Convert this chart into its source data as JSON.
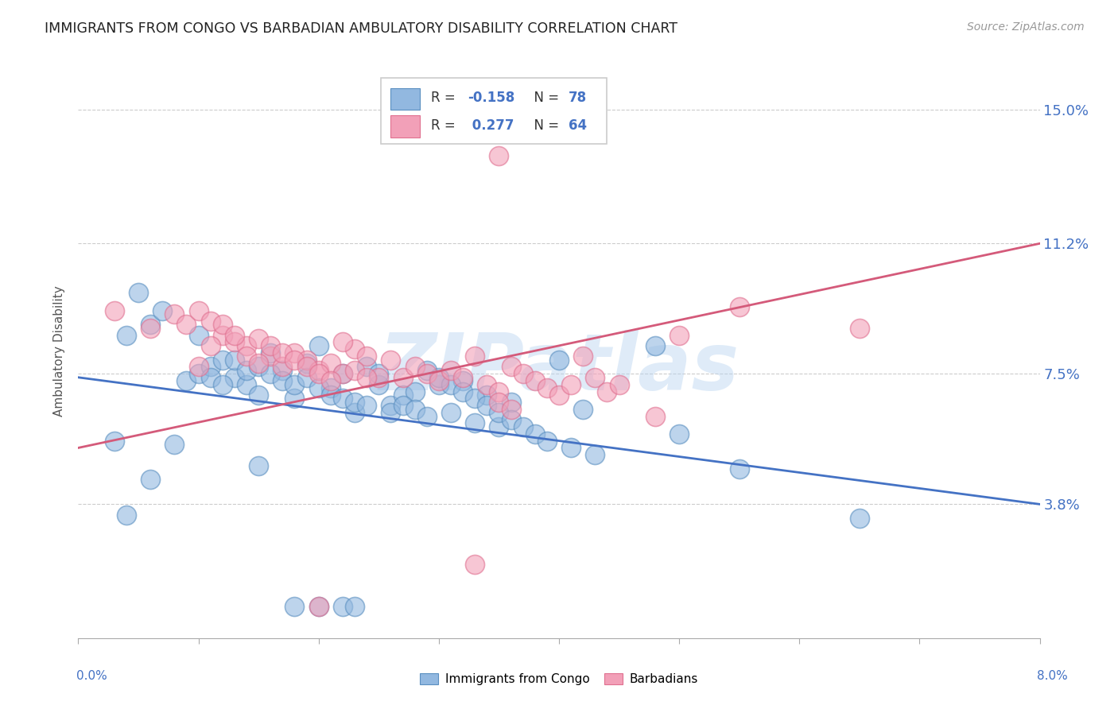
{
  "title": "IMMIGRANTS FROM CONGO VS BARBADIAN AMBULATORY DISABILITY CORRELATION CHART",
  "source": "Source: ZipAtlas.com",
  "ylabel": "Ambulatory Disability",
  "yticks": [
    "3.8%",
    "7.5%",
    "11.2%",
    "15.0%"
  ],
  "ytick_values": [
    0.038,
    0.075,
    0.112,
    0.15
  ],
  "xlim": [
    0.0,
    0.08
  ],
  "ylim": [
    0.0,
    0.163
  ],
  "blue_color": "#92b8e0",
  "pink_color": "#f2a0b8",
  "blue_edge_color": "#5a8fc0",
  "pink_edge_color": "#e07090",
  "blue_line_color": "#4472c4",
  "pink_line_color": "#d45a7a",
  "watermark": "ZIPatlas",
  "blue_line": [
    [
      0.0,
      0.074
    ],
    [
      0.08,
      0.038
    ]
  ],
  "pink_line": [
    [
      0.0,
      0.054
    ],
    [
      0.08,
      0.112
    ]
  ],
  "blue_points": [
    [
      0.005,
      0.098
    ],
    [
      0.008,
      0.055
    ],
    [
      0.009,
      0.073
    ],
    [
      0.01,
      0.075
    ],
    [
      0.011,
      0.077
    ],
    [
      0.012,
      0.079
    ],
    [
      0.013,
      0.074
    ],
    [
      0.014,
      0.072
    ],
    [
      0.015,
      0.069
    ],
    [
      0.016,
      0.081
    ],
    [
      0.017,
      0.076
    ],
    [
      0.018,
      0.068
    ],
    [
      0.019,
      0.078
    ],
    [
      0.02,
      0.083
    ],
    [
      0.021,
      0.071
    ],
    [
      0.022,
      0.075
    ],
    [
      0.023,
      0.064
    ],
    [
      0.024,
      0.077
    ],
    [
      0.025,
      0.072
    ],
    [
      0.026,
      0.066
    ],
    [
      0.027,
      0.069
    ],
    [
      0.028,
      0.07
    ],
    [
      0.029,
      0.076
    ],
    [
      0.03,
      0.072
    ],
    [
      0.031,
      0.064
    ],
    [
      0.032,
      0.073
    ],
    [
      0.033,
      0.061
    ],
    [
      0.034,
      0.069
    ],
    [
      0.035,
      0.06
    ],
    [
      0.036,
      0.067
    ],
    [
      0.04,
      0.079
    ],
    [
      0.042,
      0.065
    ],
    [
      0.048,
      0.083
    ],
    [
      0.05,
      0.058
    ],
    [
      0.055,
      0.048
    ],
    [
      0.003,
      0.056
    ],
    [
      0.004,
      0.086
    ],
    [
      0.006,
      0.089
    ],
    [
      0.007,
      0.093
    ],
    [
      0.01,
      0.086
    ],
    [
      0.011,
      0.074
    ],
    [
      0.012,
      0.072
    ],
    [
      0.013,
      0.079
    ],
    [
      0.014,
      0.076
    ],
    [
      0.015,
      0.077
    ],
    [
      0.016,
      0.075
    ],
    [
      0.017,
      0.073
    ],
    [
      0.018,
      0.072
    ],
    [
      0.019,
      0.074
    ],
    [
      0.02,
      0.071
    ],
    [
      0.021,
      0.069
    ],
    [
      0.022,
      0.068
    ],
    [
      0.023,
      0.067
    ],
    [
      0.024,
      0.066
    ],
    [
      0.025,
      0.075
    ],
    [
      0.026,
      0.064
    ],
    [
      0.027,
      0.066
    ],
    [
      0.028,
      0.065
    ],
    [
      0.029,
      0.063
    ],
    [
      0.03,
      0.074
    ],
    [
      0.031,
      0.072
    ],
    [
      0.032,
      0.07
    ],
    [
      0.033,
      0.068
    ],
    [
      0.034,
      0.066
    ],
    [
      0.035,
      0.064
    ],
    [
      0.036,
      0.062
    ],
    [
      0.037,
      0.06
    ],
    [
      0.038,
      0.058
    ],
    [
      0.039,
      0.056
    ],
    [
      0.041,
      0.054
    ],
    [
      0.043,
      0.052
    ],
    [
      0.02,
      0.009
    ],
    [
      0.022,
      0.009
    ],
    [
      0.065,
      0.034
    ],
    [
      0.004,
      0.035
    ],
    [
      0.006,
      0.045
    ],
    [
      0.015,
      0.049
    ],
    [
      0.018,
      0.009
    ],
    [
      0.023,
      0.009
    ]
  ],
  "pink_points": [
    [
      0.003,
      0.093
    ],
    [
      0.006,
      0.088
    ],
    [
      0.008,
      0.092
    ],
    [
      0.009,
      0.089
    ],
    [
      0.01,
      0.093
    ],
    [
      0.011,
      0.09
    ],
    [
      0.012,
      0.086
    ],
    [
      0.013,
      0.084
    ],
    [
      0.014,
      0.083
    ],
    [
      0.015,
      0.085
    ],
    [
      0.016,
      0.08
    ],
    [
      0.017,
      0.077
    ],
    [
      0.018,
      0.081
    ],
    [
      0.019,
      0.079
    ],
    [
      0.02,
      0.076
    ],
    [
      0.021,
      0.078
    ],
    [
      0.022,
      0.075
    ],
    [
      0.023,
      0.082
    ],
    [
      0.024,
      0.08
    ],
    [
      0.025,
      0.074
    ],
    [
      0.026,
      0.079
    ],
    [
      0.027,
      0.074
    ],
    [
      0.028,
      0.077
    ],
    [
      0.029,
      0.075
    ],
    [
      0.03,
      0.073
    ],
    [
      0.031,
      0.076
    ],
    [
      0.032,
      0.074
    ],
    [
      0.033,
      0.08
    ],
    [
      0.034,
      0.072
    ],
    [
      0.035,
      0.07
    ],
    [
      0.036,
      0.077
    ],
    [
      0.037,
      0.075
    ],
    [
      0.038,
      0.073
    ],
    [
      0.039,
      0.071
    ],
    [
      0.04,
      0.069
    ],
    [
      0.041,
      0.072
    ],
    [
      0.042,
      0.08
    ],
    [
      0.043,
      0.074
    ],
    [
      0.044,
      0.07
    ],
    [
      0.045,
      0.072
    ],
    [
      0.05,
      0.086
    ],
    [
      0.055,
      0.094
    ],
    [
      0.065,
      0.088
    ],
    [
      0.01,
      0.077
    ],
    [
      0.011,
      0.083
    ],
    [
      0.012,
      0.089
    ],
    [
      0.013,
      0.086
    ],
    [
      0.014,
      0.08
    ],
    [
      0.015,
      0.078
    ],
    [
      0.016,
      0.083
    ],
    [
      0.017,
      0.081
    ],
    [
      0.018,
      0.079
    ],
    [
      0.019,
      0.077
    ],
    [
      0.02,
      0.075
    ],
    [
      0.021,
      0.073
    ],
    [
      0.022,
      0.084
    ],
    [
      0.023,
      0.076
    ],
    [
      0.024,
      0.074
    ],
    [
      0.035,
      0.067
    ],
    [
      0.036,
      0.065
    ],
    [
      0.048,
      0.063
    ],
    [
      0.035,
      0.137
    ],
    [
      0.033,
      0.021
    ],
    [
      0.02,
      0.009
    ]
  ]
}
